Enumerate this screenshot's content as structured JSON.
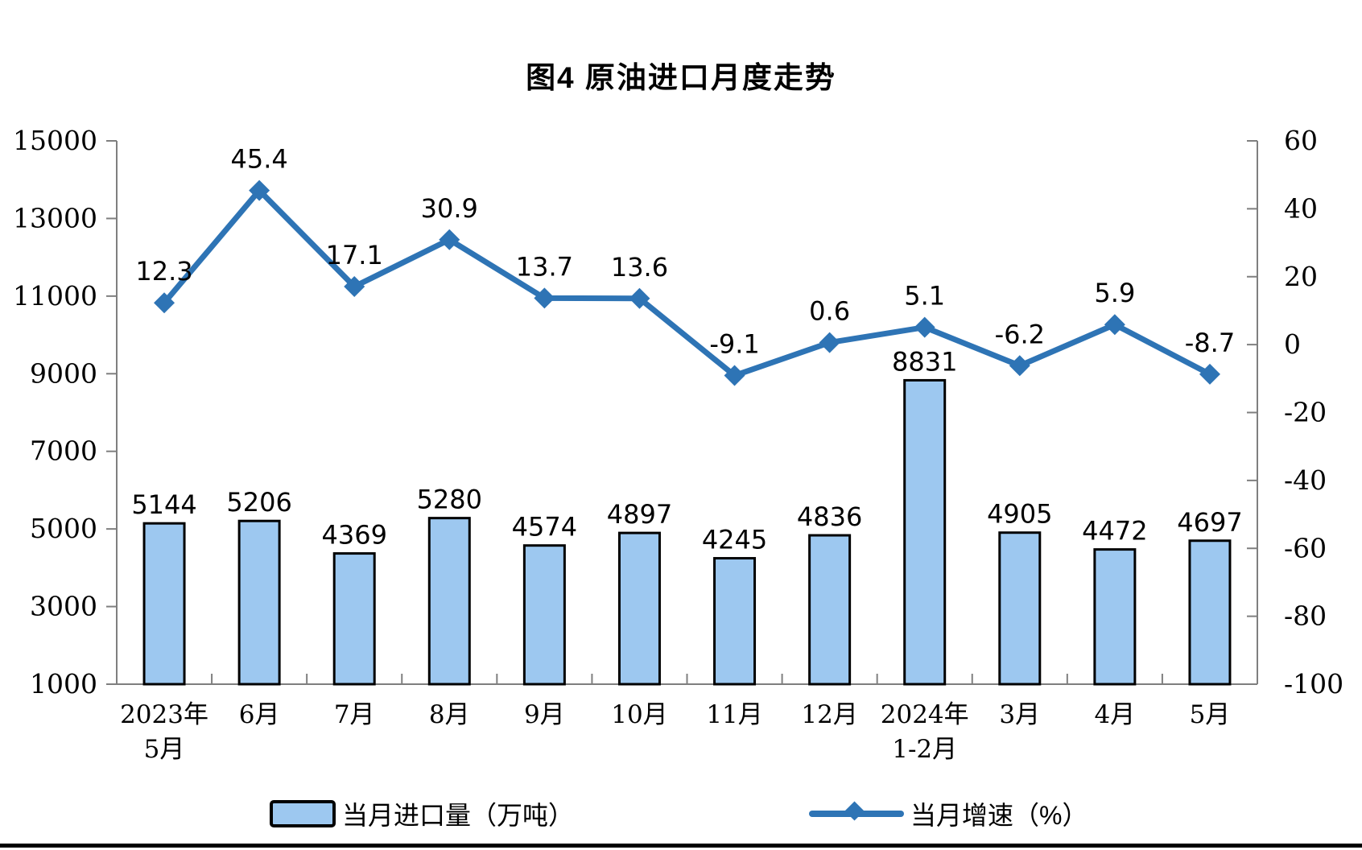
{
  "chart_data": {
    "type": "bar+line",
    "title": "图4 原油进口月度走势",
    "categories": [
      "2023年\n5月",
      "6月",
      "7月",
      "8月",
      "9月",
      "10月",
      "11月",
      "12月",
      "2024年\n1-2月",
      "3月",
      "4月",
      "5月"
    ],
    "series": [
      {
        "name": "当月进口量（万吨）",
        "type": "bar",
        "axis": "left",
        "values": [
          5144,
          5206,
          4369,
          5280,
          4574,
          4897,
          4245,
          4836,
          8831,
          4905,
          4472,
          4697
        ]
      },
      {
        "name": "当月增速（%）",
        "type": "line",
        "axis": "right",
        "values": [
          12.3,
          45.4,
          17.1,
          30.9,
          13.7,
          13.6,
          -9.1,
          0.6,
          5.1,
          -6.2,
          5.9,
          -8.7
        ]
      }
    ],
    "left_axis": {
      "min": 1000,
      "max": 15000,
      "step": 2000,
      "ticks": [
        1000,
        3000,
        5000,
        7000,
        9000,
        11000,
        13000,
        15000
      ]
    },
    "right_axis": {
      "min": -100,
      "max": 60,
      "step": 20,
      "ticks": [
        -100,
        -80,
        -60,
        -40,
        -20,
        0,
        20,
        40,
        60
      ]
    },
    "legend_position": "bottom",
    "grid": false
  },
  "colors": {
    "bar_fill": "#9DC8F0",
    "bar_stroke": "#000000",
    "line": "#2E74B5",
    "axis": "#7F7F7F",
    "text": "#000000"
  }
}
